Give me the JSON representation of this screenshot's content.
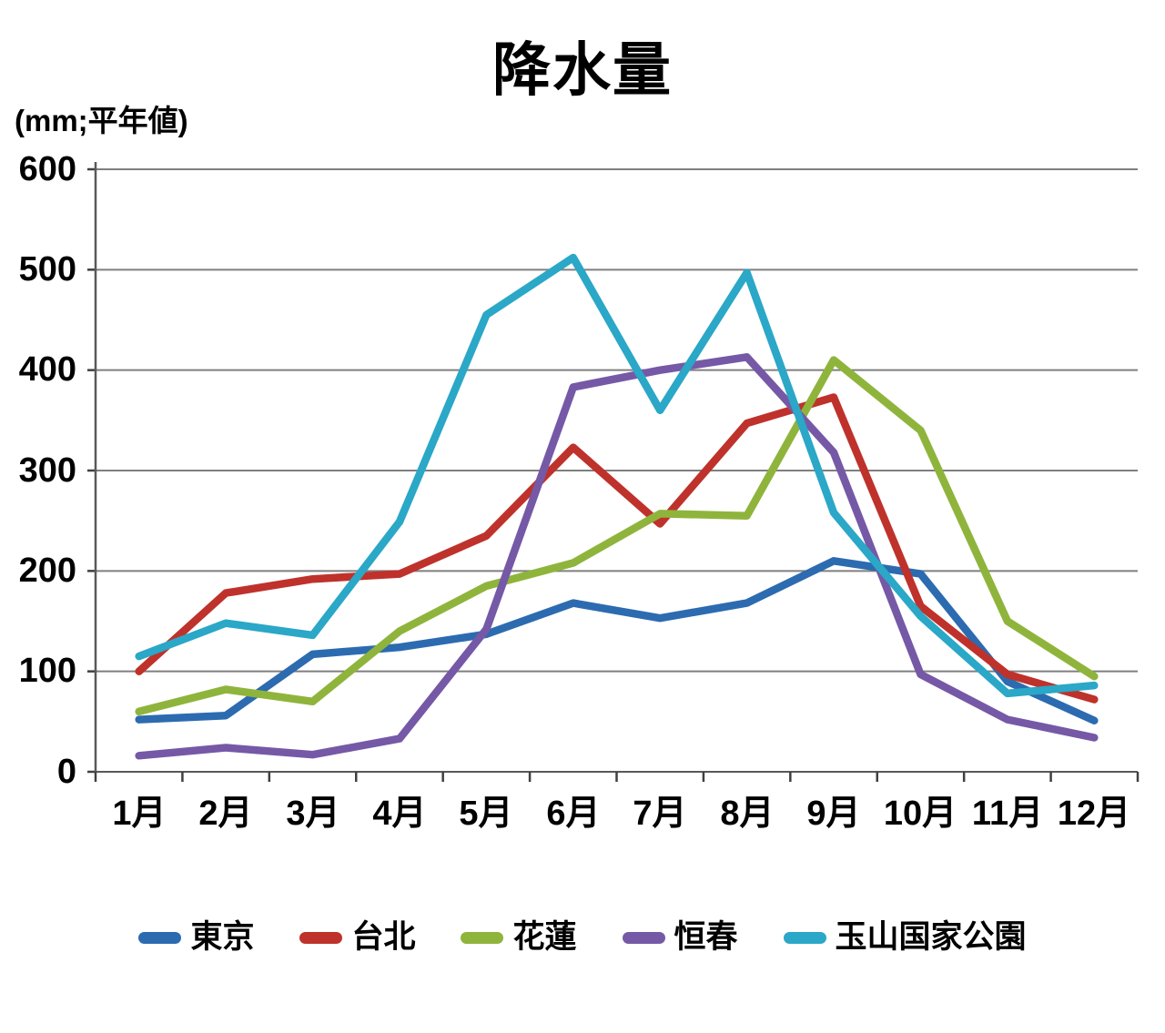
{
  "chart_data": {
    "type": "line",
    "title": "降水量",
    "unit_label": "(mm;平年値)",
    "xlabel": "",
    "ylabel": "mm (平年値)",
    "ylim": [
      0,
      600
    ],
    "y_tick_step": 100,
    "grid": "horizontal",
    "grid_color": "#7F7F7F",
    "axis_color": "#595959",
    "tick_color": "#404040",
    "legend_position": "bottom",
    "y_ticks": [
      "0",
      "100",
      "200",
      "300",
      "400",
      "500",
      "600"
    ],
    "categories": [
      "1月",
      "2月",
      "3月",
      "4月",
      "5月",
      "6月",
      "7月",
      "8月",
      "9月",
      "10月",
      "11月",
      "12月"
    ],
    "series": [
      {
        "id": "tokyo",
        "label": "東京",
        "color": "#2C6BB0",
        "values": [
          52,
          56,
          117,
          124,
          137,
          168,
          153,
          168,
          210,
          197,
          90,
          51
        ]
      },
      {
        "id": "taipei",
        "label": "台北",
        "color": "#BE322B",
        "values": [
          100,
          178,
          192,
          197,
          235,
          323,
          247,
          347,
          373,
          165,
          97,
          72
        ]
      },
      {
        "id": "hualien",
        "label": "花蓮",
        "color": "#8FB43C",
        "values": [
          60,
          82,
          70,
          140,
          185,
          208,
          257,
          255,
          410,
          340,
          150,
          95
        ]
      },
      {
        "id": "hengchun",
        "label": "恒春",
        "color": "#7559A6",
        "values": [
          16,
          24,
          17,
          33,
          142,
          383,
          400,
          413,
          318,
          97,
          52,
          34
        ]
      },
      {
        "id": "yushan",
        "label": "玉山国家公園",
        "color": "#2BA7C7",
        "values": [
          115,
          148,
          136,
          249,
          455,
          512,
          360,
          497,
          258,
          155,
          78,
          86
        ]
      }
    ]
  }
}
